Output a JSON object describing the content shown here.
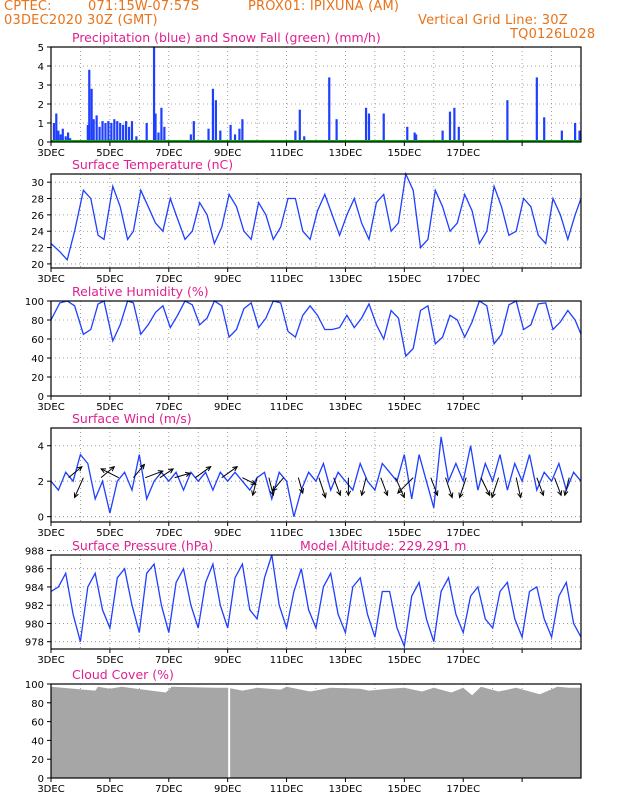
{
  "header": {
    "line1_left": "CPTEC:",
    "line1_coords": "071:15W-07:57S",
    "line1_station": "PROX01: IPIXUNA (AM)",
    "line2_left": "03DEC2020 30Z (GMT)",
    "line2_right": "Vertical Grid Line: 30Z",
    "line3_right": "TQ0126L028"
  },
  "colors": {
    "header": "#e8731a",
    "title": "#e0208f",
    "series": "#1f3fff",
    "snow": "#00b000",
    "cloud": "#a6a6a6",
    "grid": "#888888"
  },
  "x_ticks": [
    "3DEC",
    "5DEC",
    "7DEC",
    "9DEC",
    "11DEC",
    "13DEC",
    "15DEC",
    "17DEC"
  ],
  "chart_data": [
    {
      "id": "precip",
      "type": "bar",
      "title": "Precipitation (blue) and Snow Fall (green) (mm/h)",
      "ylim": [
        0,
        5
      ],
      "yticks": [
        0,
        1,
        2,
        3,
        4,
        5
      ],
      "series": [
        {
          "name": "Precipitation",
          "color": "#1f3fff",
          "x_days": [
            0.1,
            0.18,
            0.25,
            0.33,
            0.4,
            0.5,
            0.58,
            0.65,
            1.25,
            1.3,
            1.38,
            1.45,
            1.55,
            1.65,
            1.75,
            1.85,
            1.95,
            2.05,
            2.15,
            2.25,
            2.35,
            2.45,
            2.55,
            2.65,
            2.75,
            2.9,
            3.25,
            3.5,
            3.55,
            3.65,
            3.75,
            3.85,
            4.75,
            4.85,
            5.35,
            5.5,
            5.6,
            5.75,
            6.1,
            6.25,
            6.4,
            6.5,
            8.3,
            8.45,
            8.6,
            9.45,
            9.7,
            10.7,
            10.8,
            11.3,
            12.1,
            12.35,
            12.4,
            13.3,
            13.55,
            13.7,
            13.85,
            15.5,
            16.5,
            16.75,
            17.35,
            17.8,
            17.95
          ],
          "values": [
            1.0,
            1.5,
            0.6,
            0.4,
            0.7,
            0.3,
            0.5,
            0.2,
            0.9,
            3.8,
            2.8,
            1.2,
            1.4,
            0.8,
            1.1,
            1.0,
            1.1,
            1.0,
            1.2,
            1.1,
            1.0,
            0.9,
            1.1,
            0.8,
            1.1,
            0.3,
            1.0,
            5.0,
            1.5,
            0.5,
            1.8,
            0.8,
            0.4,
            1.1,
            0.7,
            2.8,
            2.2,
            0.6,
            0.9,
            0.4,
            0.7,
            1.2,
            0.6,
            1.7,
            0.3,
            3.4,
            1.2,
            1.8,
            1.5,
            1.5,
            0.8,
            0.5,
            0.4,
            0.6,
            1.6,
            1.8,
            0.8,
            2.2,
            3.4,
            1.3,
            0.6,
            1.0,
            0.6
          ]
        },
        {
          "name": "Snow Fall",
          "color": "#00b000",
          "x_days": [],
          "values": []
        }
      ]
    },
    {
      "id": "temp",
      "type": "line",
      "title": "Surface Temperature (nC)",
      "ylim": [
        19.5,
        31
      ],
      "yticks": [
        20,
        22,
        24,
        26,
        28,
        30
      ],
      "series": [
        {
          "name": "Temperature",
          "x_days": [
            0.0,
            0.3,
            0.55,
            0.8,
            1.1,
            1.35,
            1.6,
            1.8,
            2.1,
            2.35,
            2.6,
            2.8,
            3.05,
            3.3,
            3.55,
            3.8,
            4.05,
            4.3,
            4.55,
            4.8,
            5.05,
            5.3,
            5.55,
            5.8,
            6.05,
            6.3,
            6.55,
            6.8,
            7.05,
            7.3,
            7.55,
            7.8,
            8.05,
            8.3,
            8.55,
            8.8,
            9.05,
            9.3,
            9.55,
            9.8,
            10.05,
            10.3,
            10.55,
            10.8,
            11.05,
            11.3,
            11.55,
            11.8,
            12.05,
            12.3,
            12.55,
            12.8,
            13.05,
            13.3,
            13.55,
            13.8,
            14.05,
            14.3,
            14.55,
            14.8,
            15.05,
            15.3,
            15.55,
            15.8,
            16.05,
            16.3,
            16.55,
            16.8,
            17.05,
            17.3,
            17.55,
            17.8,
            18.0
          ],
          "values": [
            22.5,
            21.5,
            20.5,
            24.0,
            29.0,
            28.0,
            23.5,
            23.0,
            29.5,
            27.0,
            23.0,
            24.0,
            29.0,
            27.0,
            25.0,
            24.0,
            28.0,
            25.5,
            23.0,
            24.0,
            27.5,
            26.0,
            22.5,
            24.5,
            28.5,
            27.0,
            24.0,
            23.0,
            27.5,
            26.0,
            23.0,
            24.5,
            28.0,
            28.0,
            24.0,
            23.0,
            26.5,
            28.5,
            26.0,
            23.5,
            26.0,
            28.0,
            25.0,
            23.0,
            27.5,
            28.5,
            24.0,
            25.0,
            31.0,
            29.0,
            22.0,
            23.0,
            29.0,
            27.0,
            24.0,
            25.0,
            28.5,
            26.5,
            22.5,
            24.0,
            29.5,
            27.0,
            23.5,
            24.0,
            28.0,
            27.0,
            23.5,
            22.5,
            28.0,
            26.0,
            23.0,
            26.0,
            28.0
          ]
        }
      ]
    },
    {
      "id": "rh",
      "type": "line",
      "title": "Relative Humidity (%)",
      "ylim": [
        0,
        100
      ],
      "yticks": [
        0,
        20,
        40,
        60,
        80,
        100
      ],
      "series": [
        {
          "name": "Relative Humidity",
          "x_days": [
            0.0,
            0.3,
            0.55,
            0.8,
            1.1,
            1.35,
            1.6,
            1.8,
            2.1,
            2.35,
            2.6,
            2.8,
            3.05,
            3.3,
            3.55,
            3.8,
            4.05,
            4.3,
            4.55,
            4.8,
            5.05,
            5.3,
            5.55,
            5.8,
            6.05,
            6.3,
            6.55,
            6.8,
            7.05,
            7.3,
            7.55,
            7.8,
            8.05,
            8.3,
            8.55,
            8.8,
            9.05,
            9.3,
            9.55,
            9.8,
            10.05,
            10.3,
            10.55,
            10.8,
            11.05,
            11.3,
            11.55,
            11.8,
            12.05,
            12.3,
            12.55,
            12.8,
            13.05,
            13.3,
            13.55,
            13.8,
            14.05,
            14.3,
            14.55,
            14.8,
            15.05,
            15.3,
            15.55,
            15.8,
            16.05,
            16.3,
            16.55,
            16.8,
            17.05,
            17.3,
            17.55,
            17.8,
            18.0
          ],
          "values": [
            80,
            98,
            100,
            95,
            65,
            70,
            97,
            100,
            58,
            75,
            100,
            98,
            65,
            75,
            88,
            95,
            72,
            85,
            100,
            96,
            75,
            82,
            100,
            95,
            62,
            70,
            92,
            98,
            72,
            82,
            100,
            98,
            68,
            62,
            85,
            95,
            85,
            70,
            70,
            72,
            85,
            72,
            82,
            97,
            75,
            60,
            90,
            82,
            42,
            50,
            90,
            95,
            55,
            62,
            85,
            80,
            62,
            78,
            100,
            95,
            55,
            65,
            96,
            100,
            70,
            75,
            97,
            98,
            70,
            78,
            90,
            80,
            65
          ]
        }
      ]
    },
    {
      "id": "wind",
      "type": "line",
      "title": "Surface Wind (m/s)",
      "ylim": [
        -0.3,
        5
      ],
      "yticks": [
        0,
        2,
        4
      ],
      "series": [
        {
          "name": "Wind speed",
          "x_days": [
            0.0,
            0.25,
            0.5,
            0.75,
            1.0,
            1.25,
            1.5,
            1.75,
            2.0,
            2.25,
            2.5,
            2.75,
            3.0,
            3.25,
            3.5,
            3.75,
            4.0,
            4.25,
            4.5,
            4.75,
            5.0,
            5.25,
            5.5,
            5.75,
            6.0,
            6.25,
            6.5,
            6.75,
            7.0,
            7.25,
            7.5,
            7.75,
            8.0,
            8.25,
            8.5,
            8.75,
            9.0,
            9.25,
            9.5,
            9.75,
            10.0,
            10.25,
            10.5,
            10.75,
            11.0,
            11.25,
            11.5,
            11.75,
            12.0,
            12.25,
            12.5,
            12.75,
            13.0,
            13.25,
            13.5,
            13.75,
            14.0,
            14.25,
            14.5,
            14.75,
            15.0,
            15.25,
            15.5,
            15.75,
            16.0,
            16.25,
            16.5,
            16.75,
            17.0,
            17.25,
            17.5,
            17.75,
            18.0
          ],
          "values": [
            2.0,
            1.5,
            2.5,
            2.0,
            3.5,
            3.0,
            1.0,
            2.0,
            0.2,
            2.0,
            2.5,
            1.5,
            3.5,
            1.0,
            2.0,
            2.5,
            2.0,
            2.5,
            1.5,
            2.5,
            2.0,
            2.5,
            1.5,
            2.5,
            2.0,
            2.5,
            2.0,
            1.5,
            2.2,
            2.5,
            1.0,
            2.5,
            2.0,
            0.0,
            1.5,
            2.5,
            2.0,
            3.0,
            1.5,
            2.5,
            2.0,
            1.5,
            3.0,
            2.0,
            1.5,
            3.0,
            2.5,
            2.0,
            3.5,
            1.0,
            3.5,
            2.0,
            0.5,
            4.5,
            2.0,
            3.0,
            2.0,
            4.0,
            1.5,
            3.0,
            2.0,
            3.5,
            1.5,
            3.0,
            2.0,
            3.5,
            1.5,
            2.5,
            2.0,
            3.0,
            1.5,
            2.5,
            2.0
          ]
        }
      ],
      "wind_vectors_x_days": [
        0.6,
        1.1,
        1.7,
        2.3,
        2.8,
        3.2,
        3.7,
        4.2,
        4.9,
        5.8,
        6.5,
        7.0,
        7.4,
        7.9,
        8.4,
        9.1,
        9.6,
        10.1,
        10.7,
        11.2,
        11.7,
        12.3,
        12.9,
        13.4,
        14.1,
        14.6,
        15.2,
        15.8,
        16.5,
        17.1,
        17.6
      ],
      "wind_vectors_u": [
        0.6,
        -0.4,
        0.6,
        -0.8,
        0.5,
        0.8,
        0.6,
        0.7,
        0.7,
        0.7,
        0.6,
        -0.2,
        0.2,
        -0.5,
        0.2,
        0.3,
        0.3,
        0.0,
        -0.2,
        0.3,
        0.4,
        -0.7,
        0.3,
        0.3,
        -0.3,
        0.4,
        -0.3,
        0.2,
        0.3,
        0.3,
        -0.2
      ],
      "wind_vectors_v": [
        0.5,
        -0.9,
        0.5,
        0.4,
        0.6,
        0.3,
        0.4,
        0.2,
        0.5,
        0.5,
        -0.3,
        -0.8,
        -0.8,
        -0.6,
        -0.7,
        -0.9,
        -0.8,
        -0.8,
        -0.8,
        -0.8,
        -0.9,
        -0.7,
        -0.8,
        -0.9,
        -0.9,
        -0.8,
        -0.9,
        -0.9,
        -0.8,
        -0.8,
        -0.8
      ]
    },
    {
      "id": "pres",
      "type": "line",
      "title": "Surface Pressure (hPa)",
      "subtitle": "Model Altitude: 229.291 m",
      "ylim": [
        977.2,
        987.5
      ],
      "yticks": [
        978,
        980,
        982,
        984,
        986,
        988
      ],
      "series": [
        {
          "name": "Pressure",
          "x_days": [
            0.0,
            0.25,
            0.5,
            0.75,
            1.0,
            1.25,
            1.5,
            1.75,
            2.0,
            2.25,
            2.5,
            2.75,
            3.0,
            3.25,
            3.5,
            3.75,
            4.0,
            4.25,
            4.5,
            4.75,
            5.0,
            5.25,
            5.5,
            5.75,
            6.0,
            6.25,
            6.5,
            6.75,
            7.0,
            7.25,
            7.5,
            7.75,
            8.0,
            8.25,
            8.5,
            8.75,
            9.0,
            9.25,
            9.5,
            9.75,
            10.0,
            10.25,
            10.5,
            10.75,
            11.0,
            11.25,
            11.5,
            11.75,
            12.0,
            12.25,
            12.5,
            12.75,
            13.0,
            13.25,
            13.5,
            13.75,
            14.0,
            14.25,
            14.5,
            14.75,
            15.0,
            15.25,
            15.5,
            15.75,
            16.0,
            16.25,
            16.5,
            16.75,
            17.0,
            17.25,
            17.5,
            17.75,
            18.0
          ],
          "values": [
            983.5,
            984.0,
            985.5,
            981.0,
            978.0,
            984.0,
            985.5,
            981.5,
            979.5,
            985.0,
            986.0,
            982.0,
            979.0,
            985.5,
            986.5,
            982.0,
            979.0,
            984.5,
            986.0,
            982.0,
            979.5,
            984.5,
            986.5,
            982.0,
            979.5,
            985.0,
            986.5,
            981.5,
            980.5,
            985.0,
            987.5,
            982.0,
            979.5,
            983.5,
            986.0,
            981.5,
            979.5,
            984.0,
            985.5,
            981.0,
            979.0,
            984.0,
            985.0,
            981.0,
            978.5,
            983.5,
            983.5,
            979.5,
            977.5,
            983.0,
            984.5,
            980.5,
            978.0,
            983.5,
            985.0,
            981.0,
            979.0,
            983.0,
            984.0,
            980.5,
            979.5,
            983.5,
            984.5,
            980.5,
            978.5,
            983.5,
            984.0,
            980.5,
            978.5,
            983.0,
            984.5,
            980.0,
            978.5
          ]
        }
      ]
    },
    {
      "id": "cloud",
      "type": "area",
      "title": "Cloud Cover (%)",
      "ylim": [
        0,
        100
      ],
      "yticks": [
        0,
        20,
        40,
        60,
        80,
        100
      ],
      "series": [
        {
          "name": "Cloud Cover",
          "x_days": [
            0.0,
            1.5,
            1.6,
            2.0,
            2.4,
            3.9,
            4.1,
            5.6,
            6.0,
            6.5,
            7.0,
            7.8,
            8.0,
            8.8,
            9.5,
            10.5,
            10.8,
            11.5,
            12.0,
            12.6,
            13.0,
            13.6,
            14.0,
            14.3,
            14.6,
            15.2,
            15.8,
            16.6,
            17.2,
            17.6,
            18.0
          ],
          "values": [
            97,
            93,
            97,
            95,
            97,
            91,
            97,
            96,
            96,
            93,
            96,
            94,
            97,
            92,
            96,
            95,
            93,
            95,
            96,
            92,
            96,
            91,
            96,
            88,
            97,
            92,
            96,
            89,
            97,
            96,
            96
          ],
          "gap_at_day": 6.05
        }
      ]
    }
  ]
}
